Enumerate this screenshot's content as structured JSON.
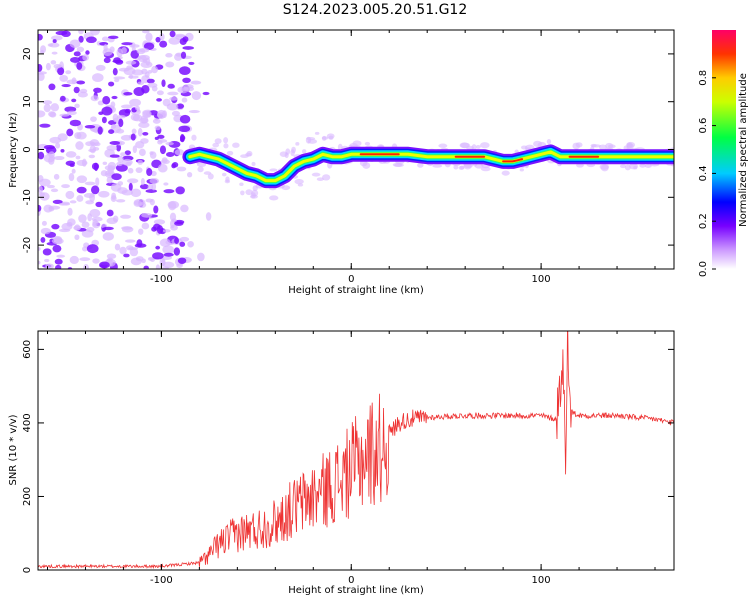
{
  "title": "S124.2023.005.20.51.G12",
  "colors": {
    "snr_line": "#ee3333",
    "axis": "#000000"
  },
  "chart_data": [
    {
      "type": "heatmap",
      "xlabel": "Height of straight line (km)",
      "ylabel": "Frequency (Hz)",
      "xlim": [
        -165,
        170
      ],
      "ylim": [
        -25,
        25
      ],
      "xticks": [
        -100,
        0,
        100
      ],
      "yticks": [
        -20,
        -10,
        0,
        10,
        20
      ],
      "ridge": {
        "x": [
          -85,
          -80,
          -75,
          -70,
          -65,
          -60,
          -55,
          -50,
          -45,
          -40,
          -35,
          -30,
          -25,
          -20,
          -15,
          -10,
          -5,
          0,
          10,
          20,
          30,
          40,
          50,
          60,
          70,
          80,
          85,
          90,
          95,
          100,
          105,
          110,
          120,
          130,
          140,
          150,
          160,
          170
        ],
        "y": [
          -1.5,
          -1,
          -1.5,
          -2,
          -3,
          -4,
          -5,
          -5.5,
          -6.5,
          -6.5,
          -5.5,
          -3.5,
          -2.5,
          -2,
          -1,
          -1.5,
          -1.5,
          -1,
          -1,
          -1,
          -1,
          -1.5,
          -1.5,
          -1.5,
          -1.5,
          -2.5,
          -2.5,
          -2,
          -1.5,
          -1,
          -0.5,
          -1.5,
          -1.5,
          -1.5,
          -1.5,
          -1.5,
          -1.5,
          -1.5
        ]
      },
      "colorbar": {
        "label": "Normalized spectral amplitude",
        "ticks": [
          0.0,
          0.2,
          0.4,
          0.6,
          0.8
        ],
        "range": [
          0,
          1
        ]
      }
    },
    {
      "type": "line",
      "xlabel": "Height of straight line (km)",
      "ylabel": "SNR (10 * v/v)",
      "xlim": [
        -165,
        170
      ],
      "ylim": [
        0,
        650
      ],
      "xticks": [
        -100,
        0,
        100
      ],
      "yticks": [
        0,
        200,
        400,
        600
      ],
      "series": [
        {
          "x": [
            -165,
            -140,
            -120,
            -100,
            -90,
            -80,
            -75,
            -70,
            -60,
            -50,
            -40,
            -30,
            -20,
            -10,
            0,
            5,
            10,
            15,
            20,
            25,
            30,
            40,
            60,
            80,
            100,
            108,
            110,
            112,
            113,
            114,
            116,
            120,
            140,
            160,
            170
          ],
          "values": [
            10,
            10,
            10,
            10,
            15,
            20,
            40,
            70,
            100,
            110,
            130,
            170,
            200,
            230,
            270,
            300,
            320,
            330,
            370,
            400,
            410,
            415,
            420,
            420,
            420,
            410,
            500,
            560,
            220,
            650,
            430,
            420,
            420,
            410,
            400
          ]
        }
      ]
    }
  ]
}
